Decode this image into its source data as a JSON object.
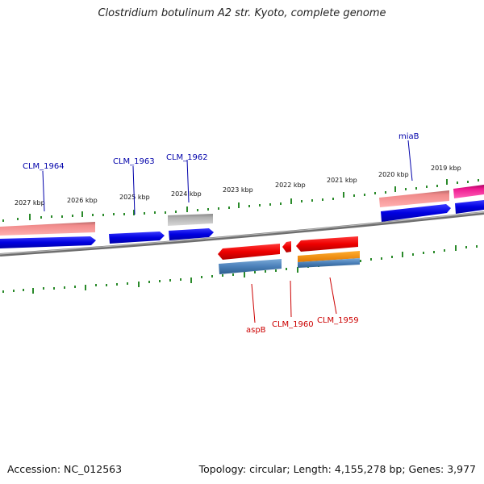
{
  "title": "Clostridium botulinum A2 str. Kyoto, complete genome",
  "footer": {
    "accession": "Accession: NC_012563",
    "summary": "Topology: circular; Length: 4,155,278 bp; Genes: 3,977"
  },
  "colors": {
    "backbone": "#8a8a8a",
    "tick": "#2a8a2a",
    "forward_label": "#0000aa",
    "reverse_label": "#cc0000"
  },
  "scale_labels": [
    "2027 kbp",
    "2026 kbp",
    "2025 kbp",
    "2024 kbp",
    "2023 kbp",
    "2022 kbp",
    "2021 kbp",
    "2020 kbp",
    "2019 kbp"
  ],
  "forward_labels": [
    "CLM_1964",
    "CLM_1963",
    "CLM_1962",
    "miaB"
  ],
  "reverse_labels": [
    "aspB",
    "CLM_1960",
    "CLM_1959"
  ]
}
